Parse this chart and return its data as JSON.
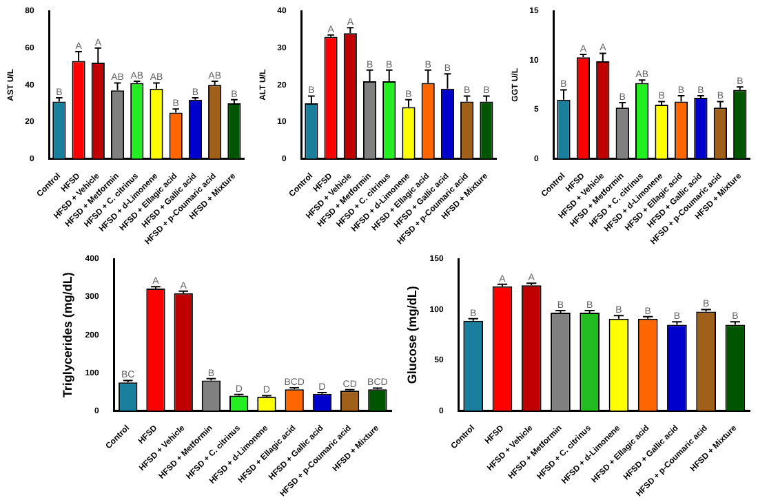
{
  "chart_data": [
    {
      "type": "bar",
      "ylabel": "AST U/L",
      "categories": [
        "Control",
        "HFSD",
        "HFSD + Vehicle",
        "HFSD + Metformin",
        "HFSD + C. citrinus",
        "HFSD + d-Limonene",
        "HFSD + Ellagic acid",
        "HFSD + Gallic acid",
        "HFSD + p-Coumaric acid",
        "HFSD + Mixture"
      ],
      "values": [
        31,
        53,
        52,
        37,
        41,
        38,
        25,
        32,
        40,
        30
      ],
      "errors": [
        2,
        5,
        8,
        4,
        1,
        3,
        2,
        1,
        2,
        2
      ],
      "colors": [
        "#1a7f9c",
        "#ff0000",
        "#c00000",
        "#808080",
        "#22ee22",
        "#ffff00",
        "#ff6600",
        "#0000cc",
        "#a0601a",
        "#005500"
      ],
      "ylim": [
        0,
        80
      ],
      "yticks": [
        0,
        20,
        40,
        60,
        80
      ],
      "grid": false,
      "legend": false,
      "annotations": [
        {
          "text": "B",
          "x": "Control",
          "y": 31
        },
        {
          "text": "A",
          "x": "HFSD",
          "y": 53
        },
        {
          "text": "A",
          "x": "HFSD + Vehicle",
          "y": 52
        },
        {
          "text": "AB",
          "x": "HFSD + Metformin",
          "y": 37
        },
        {
          "text": "AB",
          "x": "HFSD + C. citrinus",
          "y": 41
        },
        {
          "text": "AB",
          "x": "HFSD + d-Limonene",
          "y": 38
        },
        {
          "text": "B",
          "x": "HFSD + Ellagic acid",
          "y": 25
        },
        {
          "text": "B",
          "x": "HFSD + Gallic acid",
          "y": 32
        },
        {
          "text": "AB",
          "x": "HFSD + p-Coumaric acid",
          "y": 40
        },
        {
          "text": "B",
          "x": "HFSD + Mixture",
          "y": 30
        }
      ]
    },
    {
      "type": "bar",
      "ylabel": "ALT U/L",
      "categories": [
        "Control",
        "HFSD",
        "HFSD + Vehicle",
        "HFSD + Metformin",
        "HFSD + C. citrinus",
        "HFSD + d-Limonene",
        "HFSD + Ellagic acid",
        "HFSD + Gallic acid",
        "HFSD + p-Coumaric acid",
        "HFSD + Mixture"
      ],
      "values": [
        15,
        33,
        34,
        21,
        21,
        14,
        20.5,
        19,
        15.5,
        15.5
      ],
      "errors": [
        2,
        0.5,
        1.5,
        3,
        3,
        2,
        3.5,
        4,
        1.5,
        1.5
      ],
      "colors": [
        "#1a7f9c",
        "#ff0000",
        "#c00000",
        "#808080",
        "#22ee22",
        "#ffff00",
        "#ff6600",
        "#0000cc",
        "#a0601a",
        "#005500"
      ],
      "ylim": [
        0,
        40
      ],
      "yticks": [
        0,
        10,
        20,
        30,
        40
      ],
      "grid": false,
      "legend": false,
      "annotations": [
        {
          "text": "B",
          "x": "Control",
          "y": 15
        },
        {
          "text": "A",
          "x": "HFSD",
          "y": 33
        },
        {
          "text": "A",
          "x": "HFSD + Vehicle",
          "y": 34
        },
        {
          "text": "B",
          "x": "HFSD + Metformin",
          "y": 21
        },
        {
          "text": "B",
          "x": "HFSD + C. citrinus",
          "y": 21
        },
        {
          "text": "B",
          "x": "HFSD + d-Limonene",
          "y": 14
        },
        {
          "text": "B",
          "x": "HFSD + Ellagic acid",
          "y": 20.5
        },
        {
          "text": "B",
          "x": "HFSD + Gallic acid",
          "y": 19
        },
        {
          "text": "B",
          "x": "HFSD + p-Coumaric acid",
          "y": 15.5
        },
        {
          "text": "B",
          "x": "HFSD + Mixture",
          "y": 15.5
        }
      ]
    },
    {
      "type": "bar",
      "ylabel": "GGT U/L",
      "categories": [
        "Control",
        "HFSD",
        "HFSD + Vehicle",
        "HFSD + Metformin",
        "HFSD + C. citrinus",
        "HFSD + d-Limonene",
        "HFSD + Ellagic acid",
        "HFSD + Gallic acid",
        "HFSD + p-Coumaric acid",
        "HFSD + Mixture"
      ],
      "values": [
        6,
        10.3,
        9.9,
        5.2,
        7.7,
        5.5,
        5.8,
        6.2,
        5.2,
        7
      ],
      "errors": [
        1,
        0.3,
        0.8,
        0.5,
        0.3,
        0.3,
        0.6,
        0.2,
        0.6,
        0.3
      ],
      "colors": [
        "#1a7f9c",
        "#ff0000",
        "#c00000",
        "#808080",
        "#22ee22",
        "#ffff00",
        "#ff6600",
        "#0000cc",
        "#a0601a",
        "#005500"
      ],
      "ylim": [
        0,
        15
      ],
      "yticks": [
        0,
        5,
        10,
        15
      ],
      "grid": false,
      "legend": false,
      "annotations": [
        {
          "text": "B",
          "x": "Control",
          "y": 6
        },
        {
          "text": "A",
          "x": "HFSD",
          "y": 10.3
        },
        {
          "text": "A",
          "x": "HFSD + Vehicle",
          "y": 9.9
        },
        {
          "text": "B",
          "x": "HFSD + Metformin",
          "y": 5.2
        },
        {
          "text": "AB",
          "x": "HFSD + C. citrinus",
          "y": 7.7
        },
        {
          "text": "B",
          "x": "HFSD + d-Limonene",
          "y": 5.5
        },
        {
          "text": "B",
          "x": "HFSD + Ellagic acid",
          "y": 5.8
        },
        {
          "text": "B",
          "x": "HFSD + Gallic acid",
          "y": 6.2
        },
        {
          "text": "B",
          "x": "HFSD + p-Coumaric acid",
          "y": 5.2
        },
        {
          "text": "B",
          "x": "HFSD + Mixture",
          "y": 7
        }
      ]
    },
    {
      "type": "bar",
      "ylabel": "Triglycerides (mg/dL)",
      "categories": [
        "Control",
        "HFSD",
        "HFSD + Vehicle",
        "HFSD + Metformin",
        "HFSD + C. citrinus",
        "HFSD + d-Limonene",
        "HFSD + Ellagic acid",
        "HFSD + Gallic acid",
        "HFSD + p-Coumaric acid",
        "HFSD + Mixture"
      ],
      "values": [
        75,
        322,
        310,
        80,
        40,
        37,
        57,
        45,
        53,
        57
      ],
      "errors": [
        5,
        5,
        5,
        5,
        3,
        3,
        4,
        3,
        3,
        3
      ],
      "colors": [
        "#1a7f9c",
        "#ff0000",
        "#c00000",
        "#808080",
        "#22ee22",
        "#ffff00",
        "#ff6600",
        "#0000cc",
        "#a0601a",
        "#005500"
      ],
      "ylim": [
        0,
        400
      ],
      "yticks": [
        0,
        100,
        200,
        300,
        400
      ],
      "grid": false,
      "legend": false,
      "annotations": [
        {
          "text": "BC",
          "x": "Control",
          "y": 75
        },
        {
          "text": "A",
          "x": "HFSD",
          "y": 322
        },
        {
          "text": "A",
          "x": "HFSD + Vehicle",
          "y": 310
        },
        {
          "text": "B",
          "x": "HFSD + Metformin",
          "y": 80
        },
        {
          "text": "D",
          "x": "HFSD + C. citrinus",
          "y": 40
        },
        {
          "text": "D",
          "x": "HFSD + d-Limonene",
          "y": 37
        },
        {
          "text": "BCD",
          "x": "HFSD + Ellagic acid",
          "y": 57
        },
        {
          "text": "D",
          "x": "HFSD + Gallic acid",
          "y": 45
        },
        {
          "text": "CD",
          "x": "HFSD + p-Coumaric acid",
          "y": 53
        },
        {
          "text": "BCD",
          "x": "HFSD + Mixture",
          "y": 57
        }
      ]
    },
    {
      "type": "bar",
      "ylabel": "Glucose (mg/dL)",
      "categories": [
        "Control",
        "HFSD",
        "HFSD + Vehicle",
        "HFSD + Metformin",
        "HFSD + C. citrinus",
        "HFSD + d-Limonene",
        "HFSD + Ellagic acid",
        "HFSD + Gallic acid",
        "HFSD + p-Coumaric acid",
        "HFSD + Mixture"
      ],
      "values": [
        89,
        123,
        124,
        97,
        97,
        91,
        91,
        85,
        98,
        85
      ],
      "errors": [
        2,
        2,
        2,
        2,
        2,
        3,
        2,
        3,
        2,
        3
      ],
      "colors": [
        "#1a7f9c",
        "#ff0000",
        "#c00000",
        "#808080",
        "#22bb22",
        "#ffff00",
        "#ff6600",
        "#0000cc",
        "#a0601a",
        "#005500"
      ],
      "ylim": [
        0,
        150
      ],
      "yticks": [
        0,
        50,
        100,
        150
      ],
      "grid": false,
      "legend": false,
      "annotations": [
        {
          "text": "B",
          "x": "Control",
          "y": 89
        },
        {
          "text": "A",
          "x": "HFSD",
          "y": 123
        },
        {
          "text": "A",
          "x": "HFSD + Vehicle",
          "y": 124
        },
        {
          "text": "B",
          "x": "HFSD + Metformin",
          "y": 97
        },
        {
          "text": "B",
          "x": "HFSD + C. citrinus",
          "y": 97
        },
        {
          "text": "B",
          "x": "HFSD + d-Limonene",
          "y": 91
        },
        {
          "text": "B",
          "x": "HFSD + Ellagic acid",
          "y": 91
        },
        {
          "text": "B",
          "x": "HFSD + Gallic acid",
          "y": 85
        },
        {
          "text": "B",
          "x": "HFSD + p-Coumaric acid",
          "y": 98
        },
        {
          "text": "B",
          "x": "HFSD + Mixture",
          "y": 85
        }
      ]
    }
  ]
}
